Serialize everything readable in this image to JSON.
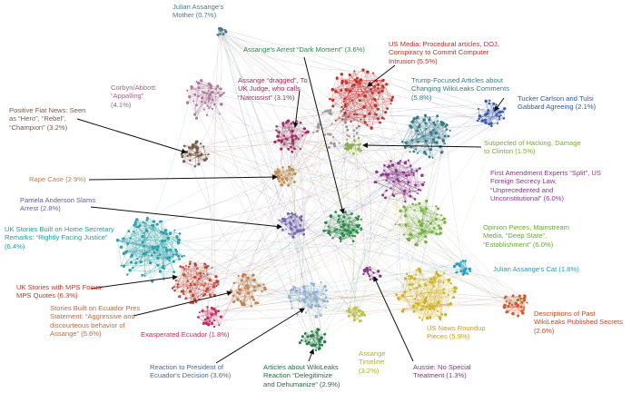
{
  "labels": [
    {
      "lines": [
        "Julian Assange's",
        "Mother (0.7%)"
      ],
      "color": "#4a7a8a"
    },
    {
      "lines": [
        "Assange's Arrest “Dark Moment” (3.6%)"
      ],
      "color": "#2a8a4a"
    },
    {
      "lines": [
        "US Media: Procedural articles, DOJ,",
        "Conspiracy to Commit Computer",
        "Intrusion (5.5%)"
      ],
      "color": "#c0302a"
    },
    {
      "lines": [
        "Corbyn/Abbott:",
        "“Appalling”",
        "(4.1%)"
      ],
      "color": "#a06a80"
    },
    {
      "lines": [
        "Assange “dragged”, To",
        "UK Judge, who calls",
        "“Narcissist” (3.1%)"
      ],
      "color": "#9a3060"
    },
    {
      "lines": [
        "Trump-Focused Articles about",
        "Changing WikiLeaks Comments",
        "(5.8%)"
      ],
      "color": "#3a7a8a"
    },
    {
      "lines": [
        "Tucker Carlson and Tulsi",
        "Gabbard Agreeing (2.1%)"
      ],
      "color": "#2a5aaa"
    },
    {
      "lines": [
        "Positive Fiat News: Seen",
        "as “Hero”, “Rebel”,",
        "“Champion” (3.2%)"
      ],
      "color": "#7a5a4a"
    },
    {
      "lines": [
        "Suspected of Hacking, Damage",
        "to Clinton (1.5%)"
      ],
      "color": "#7aaa3a"
    },
    {
      "lines": [
        "First Amendment Experts “Split”, US",
        "Foreign Secrecy Law,",
        "“Unprecedented and",
        "Unconstitutional” (6.0%)"
      ],
      "color": "#8a3a8a"
    },
    {
      "lines": [
        "Rape Case (2.9%)"
      ],
      "color": "#c0805a"
    },
    {
      "lines": [
        "Pamela Anderson Slams",
        "Arrest (2.8%)"
      ],
      "color": "#6a5aa0"
    },
    {
      "lines": [
        "UK Stories Built on Home Secretary",
        "Remarks: “Rightly Facing Justice”",
        "(6.4%)"
      ],
      "color": "#2a9aa0"
    },
    {
      "lines": [
        "Opinion Pieces, Mainstream",
        "Media, “Deep State”,",
        "“Establishment” (6.0%)"
      ],
      "color": "#6aaa3a"
    },
    {
      "lines": [
        "Julian Assange's Cat (1.8%)"
      ],
      "color": "#2a9aba"
    },
    {
      "lines": [
        "UK Stories with MPS Focus:",
        "MPS Quotes (6.3%)"
      ],
      "color": "#c03a2a"
    },
    {
      "lines": [
        "Descriptions of Past",
        "WikiLeaks Published Secrets",
        "(2.6%)"
      ],
      "color": "#c04a2a"
    },
    {
      "lines": [
        "Stories Built on Ecuador Pres",
        "Statement: “Aggressive and",
        "discourteous behavior of",
        "Assange” (5.6%)"
      ],
      "color": "#b0704a"
    },
    {
      "lines": [
        "Exasperated Ecuador (1.8%)"
      ],
      "color": "#c0305a"
    },
    {
      "lines": [
        "US News Roundup",
        "Pieces (5.9%)"
      ],
      "color": "#c8a020"
    },
    {
      "lines": [
        "Reaction to President of",
        "Ecuador's Decision (3.6%)"
      ],
      "color": "#4a6a9a"
    },
    {
      "lines": [
        "Articles about WikiLeaks",
        "Reaction “Delegitimize",
        "and Dehumanize” (2.9%)"
      ],
      "color": "#2a6a4a"
    },
    {
      "lines": [
        "Assange",
        "Timeline",
        "(3.2%)"
      ],
      "color": "#b0b040"
    },
    {
      "lines": [
        "Aussie: No Special",
        "Treatment (1.3%)"
      ],
      "color": "#7a3a7a"
    }
  ]
}
